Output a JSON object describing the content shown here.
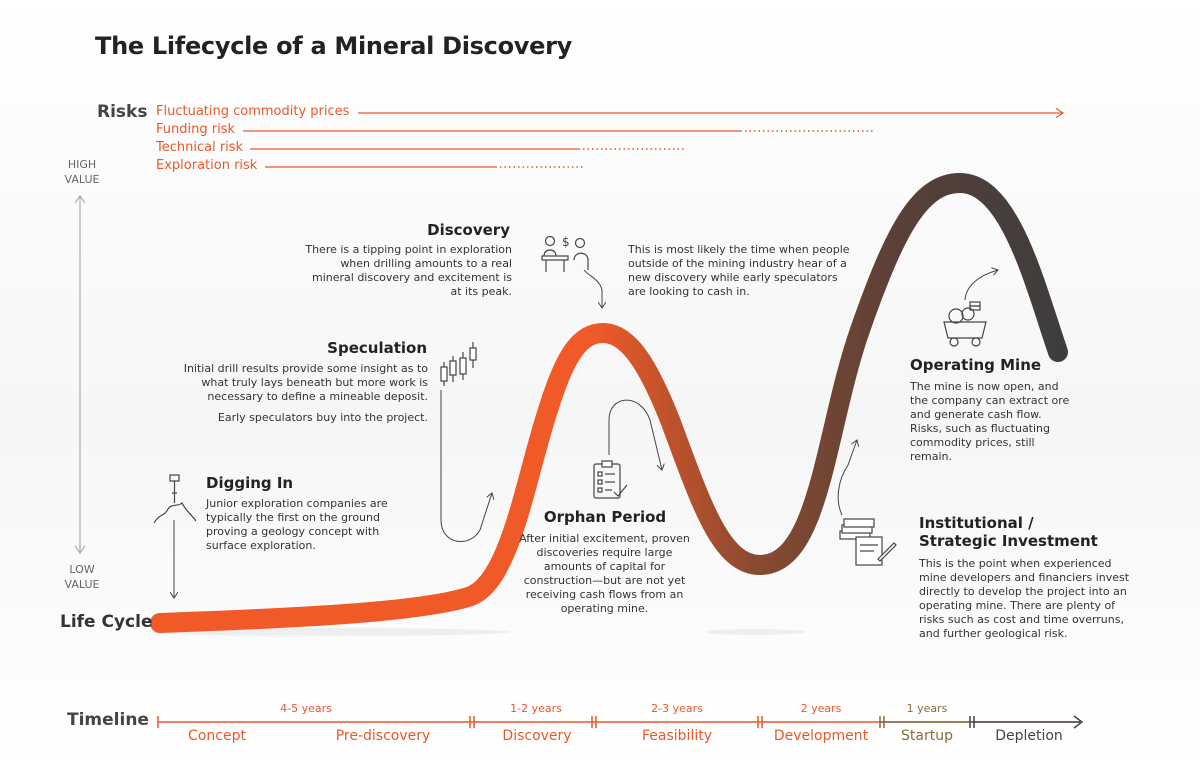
{
  "title": "The Lifecycle of a Mineral Discovery",
  "risks": {
    "label": "Risks",
    "items": [
      "Fluctuating commodity prices",
      "Funding risk",
      "Technical risk",
      "Exploration risk"
    ]
  },
  "value_axis": {
    "high": [
      "HIGH",
      "VALUE"
    ],
    "low": [
      "LOW",
      "VALUE"
    ]
  },
  "lifecycle_label": "Life Cycle",
  "stages": {
    "digging_in": {
      "heading": "Digging In",
      "text": "Junior exploration companies are typically the first on the ground proving a geology concept with surface exploration."
    },
    "speculation": {
      "heading": "Speculation",
      "text": "Initial drill results provide some insight as to what truly lays beneath but more work is necessary to define a mineable deposit.",
      "text2": "Early speculators buy into the project."
    },
    "discovery": {
      "heading": "Discovery",
      "text": "There is a tipping point in exploration when drilling amounts to a real mineral discovery and excitement is at its peak.",
      "text_right": "This is most likely the time when people outside of the mining industry hear of a new discovery while early speculators are looking to cash in."
    },
    "orphan": {
      "heading": "Orphan Period",
      "text": "After initial excitement, proven discoveries require large amounts of capital for construction—but are not yet receiving cash flows from an operating mine."
    },
    "institutional": {
      "heading": "Institutional / Strategic Investment",
      "text": "This is the point when experienced mine developers and financiers invest directly to develop the project into an operating mine. There are plenty of risks such as cost and time overruns, and further geological risk."
    },
    "operating": {
      "heading": "Operating Mine",
      "text": "The mine is now open, and the company can extract ore and generate cash flow. Risks, such as fluctuating commodity prices, still remain."
    }
  },
  "timeline": {
    "label": "Timeline",
    "durations": [
      "4-5 years",
      "1-2 years",
      "2-3 years",
      "2 years",
      "1 years"
    ],
    "phases": [
      "Concept",
      "Pre-discovery",
      "Discovery",
      "Feasibility",
      "Development",
      "Startup",
      "Depletion"
    ]
  },
  "colors": {
    "accent": "#e8582b",
    "curve_start": "#f05a28",
    "curve_mid": "#8a4a30",
    "curve_end": "#3d3d3d",
    "text": "#333333"
  },
  "icons": [
    "pickaxe-icon",
    "candlestick-chart-icon",
    "people-desk-money-icon",
    "clipboard-checklist-icon",
    "money-stack-contract-icon",
    "mine-cart-icon"
  ]
}
